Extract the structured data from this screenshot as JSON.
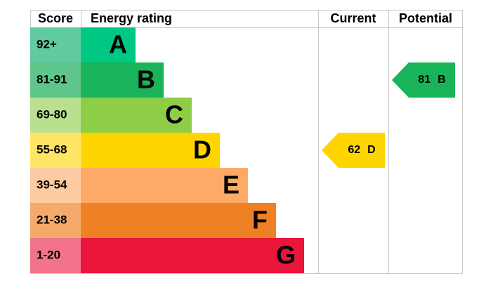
{
  "header": {
    "score": "Score",
    "energy_rating": "Energy rating",
    "current": "Current",
    "potential": "Potential"
  },
  "bands": [
    {
      "score": "92+",
      "rating": "A",
      "color": "#00c781",
      "score_color": "#5fcb9e"
    },
    {
      "score": "81-91",
      "rating": "B",
      "color": "#19b459",
      "score_color": "#5ec68a"
    },
    {
      "score": "69-80",
      "rating": "C",
      "color": "#8dce46",
      "score_color": "#b9e08f"
    },
    {
      "score": "55-68",
      "rating": "D",
      "color": "#ffd500",
      "score_color": "#ffe566"
    },
    {
      "score": "39-54",
      "rating": "E",
      "color": "#fcaa65",
      "score_color": "#fdcba2"
    },
    {
      "score": "21-38",
      "rating": "F",
      "color": "#ef8023",
      "score_color": "#f5aa6b"
    },
    {
      "score": "1-20",
      "rating": "G",
      "color": "#e9153b",
      "score_color": "#f2738b"
    }
  ],
  "current": {
    "score": 62,
    "rating": "D"
  },
  "potential": {
    "score": 81,
    "rating": "B"
  }
}
